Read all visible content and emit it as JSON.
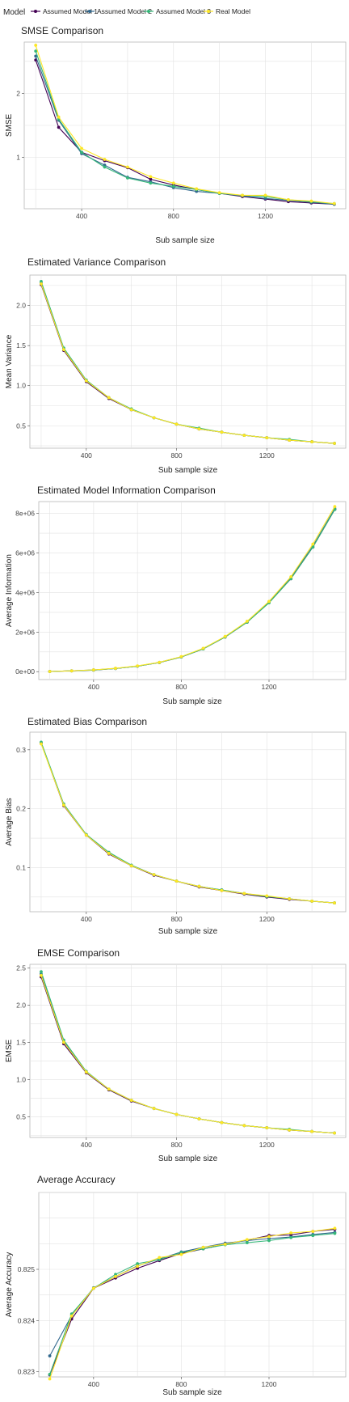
{
  "legend": {
    "title": "Model",
    "items": [
      {
        "label": "Assumed Model 1",
        "color": "#440154"
      },
      {
        "label": "Assumed Model 2",
        "color": "#31688E"
      },
      {
        "label": "Assumed Model 3",
        "color": "#35B779"
      },
      {
        "label": "Real Model",
        "color": "#FDE725"
      }
    ]
  },
  "chart_data": [
    {
      "type": "line",
      "title": "SMSE Comparison",
      "xlabel": "Sub sample size",
      "ylabel": "SMSE",
      "xlim": [
        150,
        1550
      ],
      "ylim": [
        0.2,
        2.8
      ],
      "xticks": [
        400,
        800,
        1200
      ],
      "xtick_labels": [
        "400",
        "800",
        "1200"
      ],
      "yticks": [
        1,
        2
      ],
      "ytick_labels": [
        "1",
        "2"
      ],
      "grid": true,
      "x": [
        200,
        300,
        400,
        500,
        600,
        700,
        800,
        900,
        1000,
        1100,
        1200,
        1300,
        1400,
        1500
      ],
      "series": [
        {
          "name": "Assumed Model 1",
          "values": [
            2.52,
            1.47,
            1.08,
            0.95,
            0.84,
            0.66,
            0.57,
            0.5,
            0.44,
            0.39,
            0.35,
            0.31,
            0.29,
            0.27
          ]
        },
        {
          "name": "Assumed Model 2",
          "values": [
            2.58,
            1.58,
            1.06,
            0.88,
            0.69,
            0.62,
            0.53,
            0.47,
            0.44,
            0.4,
            0.36,
            0.33,
            0.3,
            0.27
          ]
        },
        {
          "name": "Assumed Model 3",
          "values": [
            2.66,
            1.6,
            1.08,
            0.85,
            0.68,
            0.6,
            0.55,
            0.5,
            0.44,
            0.41,
            0.39,
            0.34,
            0.31,
            0.28
          ]
        },
        {
          "name": "Real Model",
          "values": [
            2.75,
            1.63,
            1.14,
            0.97,
            0.85,
            0.7,
            0.6,
            0.51,
            0.45,
            0.41,
            0.41,
            0.34,
            0.32,
            0.28
          ]
        }
      ]
    },
    {
      "type": "line",
      "title": "Estimated Variance Comparison",
      "xlabel": "Sub sample size",
      "ylabel": "Mean Variance",
      "xlim": [
        150,
        1550
      ],
      "ylim": [
        0.22,
        2.38
      ],
      "xticks": [
        400,
        800,
        1200
      ],
      "xtick_labels": [
        "400",
        "800",
        "1200"
      ],
      "yticks": [
        0.5,
        1.0,
        1.5,
        2.0
      ],
      "ytick_labels": [
        "0.5",
        "1.0",
        "1.5",
        "2.0"
      ],
      "grid": true,
      "x": [
        200,
        300,
        400,
        500,
        600,
        700,
        800,
        900,
        1000,
        1100,
        1200,
        1300,
        1400,
        1500
      ],
      "series": [
        {
          "name": "Assumed Model 1",
          "values": [
            2.26,
            1.44,
            1.05,
            0.84,
            0.7,
            0.6,
            0.52,
            0.46,
            0.42,
            0.38,
            0.35,
            0.32,
            0.3,
            0.28
          ]
        },
        {
          "name": "Assumed Model 2",
          "values": [
            2.28,
            1.46,
            1.06,
            0.85,
            0.7,
            0.6,
            0.52,
            0.46,
            0.42,
            0.38,
            0.35,
            0.32,
            0.3,
            0.28
          ]
        },
        {
          "name": "Assumed Model 3",
          "values": [
            2.3,
            1.47,
            1.07,
            0.85,
            0.71,
            0.6,
            0.52,
            0.47,
            0.42,
            0.38,
            0.35,
            0.33,
            0.3,
            0.28
          ]
        },
        {
          "name": "Real Model",
          "values": [
            2.27,
            1.45,
            1.06,
            0.85,
            0.7,
            0.6,
            0.52,
            0.46,
            0.42,
            0.38,
            0.35,
            0.32,
            0.3,
            0.28
          ]
        }
      ]
    },
    {
      "type": "line",
      "title": "Estimated Model Information Comparison",
      "xlabel": "Sub sample size",
      "ylabel": "Average Information",
      "xlim": [
        150,
        1550
      ],
      "ylim": [
        -400000,
        8600000
      ],
      "xticks": [
        400,
        800,
        1200
      ],
      "xtick_labels": [
        "400",
        "800",
        "1200"
      ],
      "yticks": [
        0,
        2000000,
        4000000,
        6000000,
        8000000
      ],
      "ytick_labels": [
        "0e+00",
        "2e+06",
        "4e+06",
        "6e+06",
        "8e+06"
      ],
      "grid": true,
      "x": [
        200,
        300,
        400,
        500,
        600,
        700,
        800,
        900,
        1000,
        1100,
        1200,
        1300,
        1400,
        1500
      ],
      "series": [
        {
          "name": "Assumed Model 1",
          "values": [
            10000,
            40000,
            80000,
            160000,
            280000,
            460000,
            740000,
            1150000,
            1750000,
            2500000,
            3500000,
            4700000,
            6300000,
            8200000
          ]
        },
        {
          "name": "Assumed Model 2",
          "values": [
            10000,
            40000,
            90000,
            160000,
            280000,
            470000,
            750000,
            1170000,
            1760000,
            2520000,
            3520000,
            4750000,
            6350000,
            8250000
          ]
        },
        {
          "name": "Assumed Model 3",
          "values": [
            10000,
            40000,
            80000,
            160000,
            280000,
            460000,
            740000,
            1150000,
            1750000,
            2500000,
            3480000,
            4700000,
            6300000,
            8200000
          ]
        },
        {
          "name": "Real Model",
          "values": [
            10000,
            40000,
            90000,
            170000,
            290000,
            470000,
            760000,
            1180000,
            1780000,
            2550000,
            3550000,
            4800000,
            6450000,
            8350000
          ]
        }
      ]
    },
    {
      "type": "line",
      "title": "Estimated Bias Comparison",
      "xlabel": "Sub sample size",
      "ylabel": "Average Bias",
      "xlim": [
        150,
        1550
      ],
      "ylim": [
        0.025,
        0.33
      ],
      "xticks": [
        400,
        800,
        1200
      ],
      "xtick_labels": [
        "400",
        "800",
        "1200"
      ],
      "yticks": [
        0.1,
        0.2,
        0.3
      ],
      "ytick_labels": [
        "0.1",
        "0.2",
        "0.3"
      ],
      "grid": true,
      "x": [
        200,
        300,
        400,
        500,
        600,
        700,
        800,
        900,
        1000,
        1100,
        1200,
        1300,
        1400,
        1500
      ],
      "series": [
        {
          "name": "Assumed Model 1",
          "values": [
            0.311,
            0.205,
            0.155,
            0.123,
            0.103,
            0.087,
            0.077,
            0.067,
            0.061,
            0.055,
            0.05,
            0.046,
            0.043,
            0.04
          ]
        },
        {
          "name": "Assumed Model 2",
          "values": [
            0.312,
            0.207,
            0.156,
            0.125,
            0.104,
            0.088,
            0.077,
            0.068,
            0.062,
            0.056,
            0.051,
            0.047,
            0.043,
            0.04
          ]
        },
        {
          "name": "Assumed Model 3",
          "values": [
            0.313,
            0.208,
            0.156,
            0.126,
            0.104,
            0.088,
            0.077,
            0.068,
            0.062,
            0.056,
            0.051,
            0.047,
            0.043,
            0.04
          ]
        },
        {
          "name": "Real Model",
          "values": [
            0.31,
            0.206,
            0.155,
            0.124,
            0.103,
            0.088,
            0.077,
            0.068,
            0.061,
            0.056,
            0.052,
            0.047,
            0.043,
            0.04
          ]
        }
      ]
    },
    {
      "type": "line",
      "title": "EMSE Comparison",
      "xlabel": "Sub sample size",
      "ylabel": "EMSE",
      "xlim": [
        150,
        1550
      ],
      "ylim": [
        0.22,
        2.55
      ],
      "xticks": [
        400,
        800,
        1200
      ],
      "xtick_labels": [
        "400",
        "800",
        "1200"
      ],
      "yticks": [
        0.5,
        1.0,
        1.5,
        2.0,
        2.5
      ],
      "ytick_labels": [
        "0.5",
        "1.0",
        "1.5",
        "2.0",
        "2.5"
      ],
      "grid": true,
      "x": [
        200,
        300,
        400,
        500,
        600,
        700,
        800,
        900,
        1000,
        1100,
        1200,
        1300,
        1400,
        1500
      ],
      "series": [
        {
          "name": "Assumed Model 1",
          "values": [
            2.38,
            1.48,
            1.09,
            0.86,
            0.71,
            0.61,
            0.53,
            0.47,
            0.42,
            0.38,
            0.35,
            0.32,
            0.3,
            0.28
          ]
        },
        {
          "name": "Assumed Model 2",
          "values": [
            2.42,
            1.51,
            1.1,
            0.87,
            0.72,
            0.61,
            0.53,
            0.47,
            0.42,
            0.38,
            0.35,
            0.32,
            0.3,
            0.28
          ]
        },
        {
          "name": "Assumed Model 3",
          "values": [
            2.45,
            1.53,
            1.11,
            0.87,
            0.72,
            0.61,
            0.53,
            0.47,
            0.42,
            0.38,
            0.35,
            0.33,
            0.3,
            0.28
          ]
        },
        {
          "name": "Real Model",
          "values": [
            2.4,
            1.5,
            1.1,
            0.87,
            0.72,
            0.61,
            0.53,
            0.47,
            0.42,
            0.38,
            0.35,
            0.32,
            0.3,
            0.28
          ]
        }
      ]
    },
    {
      "type": "line",
      "title": "Average Accuracy",
      "xlabel": "Sub sample size",
      "ylabel": "Average Accuracy",
      "xlim": [
        150,
        1550
      ],
      "ylim": [
        0.8229,
        0.8265
      ],
      "xticks": [
        400,
        800,
        1200
      ],
      "xtick_labels": [
        "400",
        "800",
        "1200"
      ],
      "yticks": [
        0.823,
        0.824,
        0.825
      ],
      "ytick_labels": [
        "0.823",
        "0.824",
        "0.825"
      ],
      "grid": true,
      "x": [
        200,
        300,
        400,
        500,
        600,
        700,
        800,
        900,
        1000,
        1100,
        1200,
        1300,
        1400,
        1500
      ],
      "series": [
        {
          "name": "Assumed Model 1",
          "values": [
            0.82294,
            0.82403,
            0.82463,
            0.82483,
            0.82502,
            0.82517,
            0.82531,
            0.8254,
            0.82549,
            0.82557,
            0.82566,
            0.82567,
            0.82574,
            0.82578
          ]
        },
        {
          "name": "Assumed Model 2",
          "values": [
            0.82331,
            0.8241,
            0.82464,
            0.82486,
            0.82507,
            0.8252,
            0.82534,
            0.82543,
            0.82551,
            0.82556,
            0.8256,
            0.82563,
            0.82568,
            0.82572
          ]
        },
        {
          "name": "Assumed Model 3",
          "values": [
            0.82295,
            0.82413,
            0.82463,
            0.8249,
            0.82511,
            0.82519,
            0.82533,
            0.8254,
            0.82548,
            0.82552,
            0.82556,
            0.82562,
            0.82566,
            0.8257
          ]
        },
        {
          "name": "Real Model",
          "values": [
            0.82286,
            0.82409,
            0.82463,
            0.82486,
            0.82506,
            0.82523,
            0.82529,
            0.82543,
            0.82549,
            0.82558,
            0.82564,
            0.82571,
            0.82574,
            0.8258
          ]
        }
      ]
    }
  ]
}
